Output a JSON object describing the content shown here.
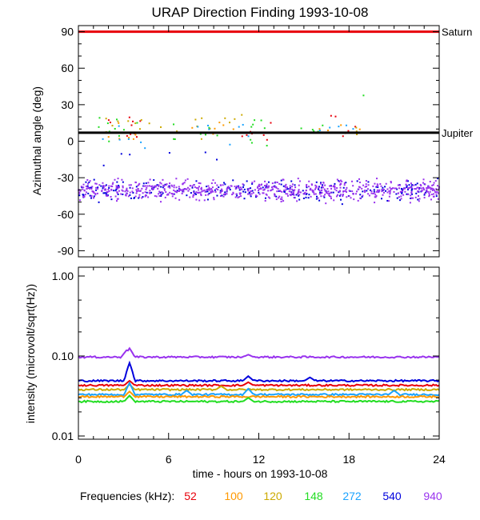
{
  "title": "URAP Direction Finding  1993-10-08",
  "legend": {
    "label": "Frequencies (kHz):",
    "entries": [
      {
        "name": "52",
        "color": "#e8000b"
      },
      {
        "name": "100",
        "color": "#ff9900"
      },
      {
        "name": "120",
        "color": "#ccaa00"
      },
      {
        "name": "148",
        "color": "#22dd22"
      },
      {
        "name": "272",
        "color": "#1aa3ff"
      },
      {
        "name": "540",
        "color": "#0000dd"
      },
      {
        "name": "940",
        "color": "#9933ee"
      }
    ]
  },
  "chart_data": [
    {
      "type": "scatter",
      "title": "URAP Direction Finding  1993-10-08",
      "ylabel": "Azimuthal angle (deg)",
      "xlim": [
        0,
        24
      ],
      "ylim": [
        -95,
        95
      ],
      "yticks": [
        90,
        60,
        30,
        0,
        -30,
        -60,
        -90
      ],
      "ytick_labels": [
        "90",
        "60",
        "30",
        "0",
        "-30",
        "-60",
        "-90"
      ],
      "reference_lines": [
        {
          "name": "Saturn",
          "value": 90,
          "color": "#e8000b"
        },
        {
          "name": "Jupiter",
          "value": 7,
          "color": "#000000"
        }
      ],
      "series": [
        {
          "name": "52",
          "color": "#e8000b",
          "clusters": [
            {
              "x": [
                1.5,
                4.5
              ],
              "y": [
                0,
                20
              ],
              "n": 10
            },
            {
              "x": [
                10.5,
                13.0
              ],
              "y": [
                -2,
                18
              ],
              "n": 8
            },
            {
              "x": [
                15.5,
                18.5
              ],
              "y": [
                2,
                24
              ],
              "n": 6
            }
          ]
        },
        {
          "name": "100",
          "color": "#ff9900",
          "clusters": [
            {
              "x": [
                1.0,
                5.0
              ],
              "y": [
                2,
                16
              ],
              "n": 8
            },
            {
              "x": [
                7.5,
                11.0
              ],
              "y": [
                3,
                18
              ],
              "n": 8
            },
            {
              "x": [
                16.0,
                19.0
              ],
              "y": [
                4,
                14
              ],
              "n": 4
            }
          ]
        },
        {
          "name": "120",
          "color": "#ccaa00",
          "clusters": [
            {
              "x": [
                1.5,
                5.5
              ],
              "y": [
                4,
                20
              ],
              "n": 10
            },
            {
              "x": [
                6.5,
                12.0
              ],
              "y": [
                2,
                22
              ],
              "n": 10
            },
            {
              "x": [
                17.5,
                19.0
              ],
              "y": [
                5,
                12
              ],
              "n": 3
            }
          ]
        },
        {
          "name": "148",
          "color": "#22dd22",
          "clusters": [
            {
              "x": [
                1.0,
                4.0
              ],
              "y": [
                0,
                22
              ],
              "n": 12
            },
            {
              "x": [
                6.0,
                9.5
              ],
              "y": [
                0,
                16
              ],
              "n": 8
            },
            {
              "x": [
                11.0,
                13.0
              ],
              "y": [
                -4,
                18
              ],
              "n": 10
            },
            {
              "x": [
                14.5,
                17.0
              ],
              "y": [
                2,
                20
              ],
              "n": 6
            },
            {
              "x": [
                18.5,
                19.0
              ],
              "y": [
                37,
                38
              ],
              "n": 1
            }
          ]
        },
        {
          "name": "272",
          "color": "#1aa3ff",
          "clusters": [
            {
              "x": [
                1.5,
                4.5
              ],
              "y": [
                -6,
                14
              ],
              "n": 6
            },
            {
              "x": [
                7.0,
                12.5
              ],
              "y": [
                -4,
                14
              ],
              "n": 8
            },
            {
              "x": [
                16.0,
                18.5
              ],
              "y": [
                0,
                14
              ],
              "n": 5
            }
          ]
        },
        {
          "name": "540",
          "color": "#0000dd",
          "clusters": [
            {
              "x": [
                0.0,
                24.0
              ],
              "y": [
                -52,
                -28
              ],
              "n": 260
            },
            {
              "x": [
                0.2,
                11.0
              ],
              "y": [
                -20,
                -8
              ],
              "n": 6
            }
          ]
        },
        {
          "name": "940",
          "color": "#9933ee",
          "clusters": [
            {
              "x": [
                0.0,
                24.0
              ],
              "y": [
                -52,
                -28
              ],
              "n": 700
            }
          ]
        }
      ]
    },
    {
      "type": "line",
      "ylabel": "intensity (microvolt/sqrt(Hz))",
      "xlabel": "time - hours on 1993-10-08",
      "xlim": [
        0,
        24
      ],
      "xticks": [
        0,
        6,
        12,
        18,
        24
      ],
      "xtick_labels": [
        "0",
        "6",
        "12",
        "18",
        "24"
      ],
      "yscale": "log",
      "ylim": [
        0.01,
        1.0
      ],
      "yticks": [
        1.0,
        0.1,
        0.01
      ],
      "ytick_labels": [
        "1.00",
        "0.10",
        "0.01"
      ],
      "series": [
        {
          "name": "940",
          "color": "#9933ee",
          "baseline": 0.097,
          "spikes": [
            {
              "x": 3.2,
              "y": 0.118
            },
            {
              "x": 3.4,
              "y": 0.125
            },
            {
              "x": 11.3,
              "y": 0.104
            }
          ]
        },
        {
          "name": "540",
          "color": "#0000dd",
          "baseline": 0.049,
          "spikes": [
            {
              "x": 3.4,
              "y": 0.082
            },
            {
              "x": 11.3,
              "y": 0.056
            },
            {
              "x": 15.4,
              "y": 0.054
            }
          ]
        },
        {
          "name": "52",
          "color": "#e8000b",
          "baseline": 0.043,
          "spikes": [
            {
              "x": 3.4,
              "y": 0.049
            },
            {
              "x": 11.3,
              "y": 0.047
            }
          ]
        },
        {
          "name": "120",
          "color": "#ccaa00",
          "baseline": 0.038,
          "spikes": [
            {
              "x": 3.4,
              "y": 0.044
            },
            {
              "x": 9.5,
              "y": 0.042
            }
          ]
        },
        {
          "name": "272",
          "color": "#1aa3ff",
          "baseline": 0.033,
          "spikes": [
            {
              "x": 3.4,
              "y": 0.046
            },
            {
              "x": 7.2,
              "y": 0.037
            },
            {
              "x": 11.3,
              "y": 0.039
            },
            {
              "x": 21.0,
              "y": 0.037
            }
          ]
        },
        {
          "name": "100",
          "color": "#ff9900",
          "baseline": 0.031,
          "spikes": [
            {
              "x": 3.4,
              "y": 0.036
            }
          ]
        },
        {
          "name": "148",
          "color": "#22dd22",
          "baseline": 0.027,
          "spikes": [
            {
              "x": 3.4,
              "y": 0.032
            },
            {
              "x": 11.3,
              "y": 0.03
            }
          ]
        }
      ]
    }
  ]
}
